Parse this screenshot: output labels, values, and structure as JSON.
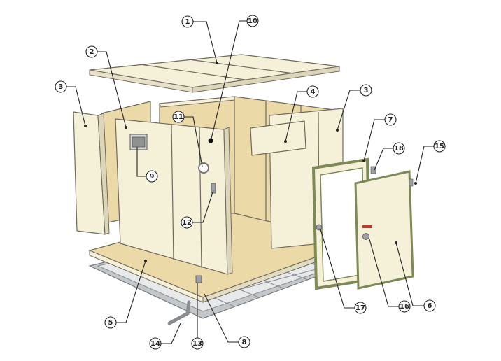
{
  "callouts": [
    {
      "id": "c1",
      "label": "1"
    },
    {
      "id": "c2",
      "label": "2"
    },
    {
      "id": "c3a",
      "label": "3"
    },
    {
      "id": "c3b",
      "label": "3"
    },
    {
      "id": "c4",
      "label": "4"
    },
    {
      "id": "c5",
      "label": "5"
    },
    {
      "id": "c6",
      "label": "6"
    },
    {
      "id": "c7",
      "label": "7"
    },
    {
      "id": "c8",
      "label": "8"
    },
    {
      "id": "c9",
      "label": "9"
    },
    {
      "id": "c10",
      "label": "10"
    },
    {
      "id": "c11",
      "label": "11"
    },
    {
      "id": "c12",
      "label": "12"
    },
    {
      "id": "c13",
      "label": "13"
    },
    {
      "id": "c14",
      "label": "14"
    },
    {
      "id": "c15",
      "label": "15"
    },
    {
      "id": "c16",
      "label": "16"
    },
    {
      "id": "c17",
      "label": "17"
    },
    {
      "id": "c18",
      "label": "18"
    }
  ],
  "colors": {
    "panel": "#f4f1d8",
    "panel_inner": "#ecd9a8",
    "edge": "#6f6a5e",
    "metal": "#b9bcbf",
    "frame_green": "#7e8a55",
    "handle_red": "#c0392b"
  }
}
